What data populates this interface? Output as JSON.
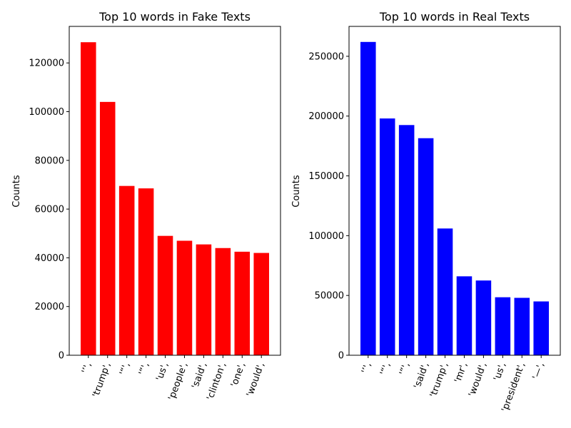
{
  "chart_data": [
    {
      "type": "bar",
      "title": "Top 10 words in Fake Texts",
      "xlabel": "",
      "ylabel": "Counts",
      "categories": [
        "''",
        "'trump'",
        "'“'",
        "'”'",
        "'us'",
        "'people'",
        "'said'",
        "'clinton'",
        "'one'",
        "'would'"
      ],
      "tick_labels": [
        "'’',",
        "'trump',",
        "'“',",
        "'”',",
        "'us',",
        "'people',",
        "'said',",
        "'clinton',",
        "'one',",
        "'would',"
      ],
      "values": [
        128500,
        104000,
        69500,
        68500,
        49000,
        47000,
        45500,
        44000,
        42500,
        42000
      ],
      "ylim": [
        0,
        135000
      ],
      "yticks": [
        0,
        20000,
        40000,
        60000,
        80000,
        100000,
        120000
      ],
      "color": "#ff0000",
      "grid": false,
      "legend": "none"
    },
    {
      "type": "bar",
      "title": "Top 10 words in Real Texts",
      "xlabel": "",
      "ylabel": "Counts",
      "categories": [
        "''",
        "'“'",
        "'”'",
        "'said'",
        "'trump'",
        "'mr'",
        "'would'",
        "'us'",
        "'president'",
        "'—'"
      ],
      "tick_labels": [
        "'’',",
        "'“',",
        "'”',",
        "'said',",
        "'trump',",
        "'mr',",
        "'would',",
        "'us',",
        "'president',",
        "'—',"
      ],
      "values": [
        262000,
        198000,
        192500,
        181500,
        106000,
        66000,
        62500,
        48500,
        48000,
        45000
      ],
      "ylim": [
        0,
        275000
      ],
      "yticks": [
        0,
        50000,
        100000,
        150000,
        200000,
        250000
      ],
      "color": "#0000ff",
      "grid": false,
      "legend": "none"
    }
  ]
}
